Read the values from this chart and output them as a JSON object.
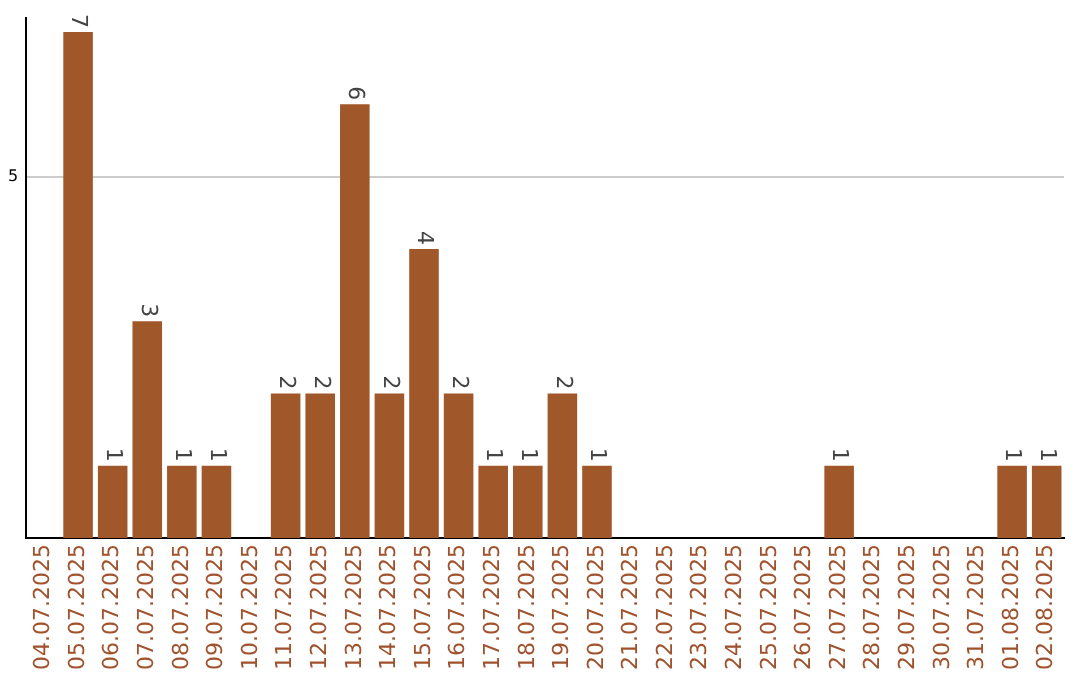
{
  "chart_data": {
    "type": "bar",
    "categories": [
      "04.07.2025",
      "05.07.2025",
      "06.07.2025",
      "07.07.2025",
      "08.07.2025",
      "09.07.2025",
      "10.07.2025",
      "11.07.2025",
      "12.07.2025",
      "13.07.2025",
      "14.07.2025",
      "15.07.2025",
      "16.07.2025",
      "17.07.2025",
      "18.07.2025",
      "19.07.2025",
      "20.07.2025",
      "21.07.2025",
      "22.07.2025",
      "23.07.2025",
      "24.07.2025",
      "25.07.2025",
      "26.07.2025",
      "27.07.2025",
      "28.07.2025",
      "29.07.2025",
      "30.07.2025",
      "31.07.2025",
      "01.08.2025",
      "02.08.2025"
    ],
    "values": [
      0,
      7,
      1,
      3,
      1,
      1,
      0,
      2,
      2,
      6,
      2,
      4,
      2,
      1,
      1,
      2,
      1,
      0,
      0,
      0,
      0,
      0,
      0,
      1,
      0,
      0,
      0,
      0,
      1,
      1
    ],
    "value_labels": [
      null,
      "7",
      "1",
      "3",
      "1",
      "1",
      null,
      "2",
      "2",
      "6",
      "2",
      "4",
      "2",
      "1",
      "1",
      "2",
      "1",
      null,
      null,
      null,
      null,
      null,
      null,
      "1",
      null,
      null,
      null,
      null,
      "1",
      "1"
    ],
    "color": "#a0582a",
    "ylim": [
      0,
      7.2
    ],
    "yticks": [
      5
    ],
    "grid": "y",
    "legend": false
  }
}
